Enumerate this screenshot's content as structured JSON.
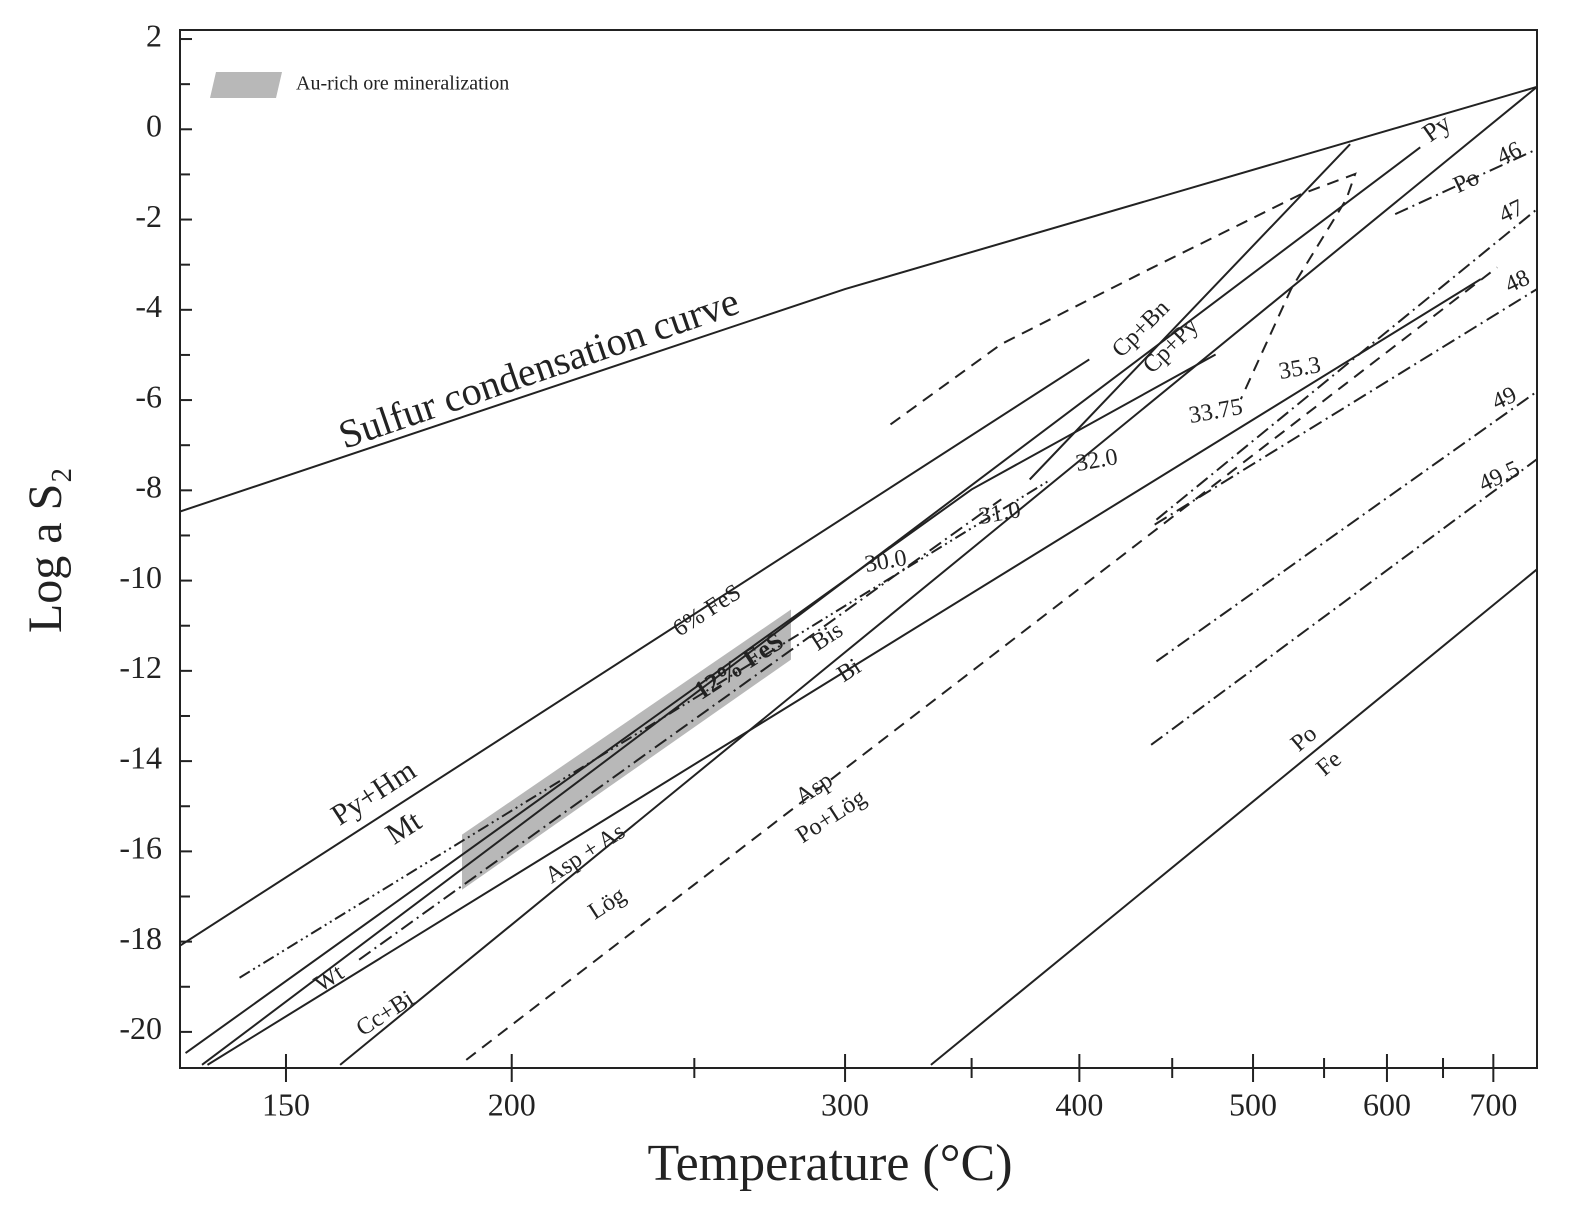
{
  "chart_data": {
    "type": "phase-diagram",
    "x_label": "Temperature (°C)",
    "y_label": "Log a S₂",
    "xscale": "reciprocal-kelvin",
    "xlim": [
      130,
      748
    ],
    "xticks": [
      150,
      200,
      300,
      400,
      500,
      600,
      700
    ],
    "xticks_minor": [
      250,
      350,
      450,
      550,
      650
    ],
    "ylim": [
      -20.8,
      2.2
    ],
    "yticks": [
      -20,
      -18,
      -16,
      -14,
      -12,
      -10,
      -8,
      -6,
      -4,
      -2,
      0,
      2
    ],
    "yticks_minor": [
      -19,
      -17,
      -15,
      -13,
      -11,
      -9,
      -7,
      -5,
      -3,
      -1,
      1
    ],
    "color": "#222222",
    "regions": [
      {
        "name": "Au-rich ore mineralization",
        "color": "#b8b8b8",
        "x": [
          188,
          281,
          281,
          188
        ],
        "y": [
          -15.63,
          -10.64,
          -11.75,
          -16.85
        ]
      }
    ],
    "lines": [
      {
        "style": "solid",
        "x": [
          130,
          300,
          748
        ],
        "y": [
          -8.47,
          -3.54,
          0.94
        ]
      },
      {
        "style": "solid",
        "x": [
          130,
          405
        ],
        "y": [
          -18.09,
          -5.1
        ]
      },
      {
        "style": "dash-dot-dot",
        "x": [
          141,
          386
        ],
        "y": [
          -18.8,
          -7.76
        ]
      },
      {
        "style": "dash-dot",
        "x": [
          165,
          363
        ],
        "y": [
          -18.4,
          -8.2
        ]
      },
      {
        "style": "solid",
        "x": [
          134,
          629
        ],
        "y": [
          -20.73,
          -0.4
        ]
      },
      {
        "style": "solid",
        "x": [
          131,
          350,
          476
        ],
        "y": [
          -20.47,
          -7.98,
          -4.99
        ]
      },
      {
        "style": "solid",
        "x": [
          376,
          570
        ],
        "y": [
          -7.76,
          -0.33
        ]
      },
      {
        "style": "solid",
        "x": [
          135,
          687
        ],
        "y": [
          -20.73,
          -3.32
        ]
      },
      {
        "style": "solid",
        "x": [
          161,
          748
        ],
        "y": [
          -20.73,
          0.94
        ]
      },
      {
        "style": "dashed",
        "x": [
          189,
          704
        ],
        "y": [
          -20.62,
          -3.06
        ]
      },
      {
        "style": "solid",
        "x": [
          333,
          748
        ],
        "y": [
          -20.73,
          -9.75
        ]
      },
      {
        "style": "dashed",
        "x": [
          317,
          363,
          437,
          533,
          574,
          567,
          526,
          492
        ],
        "y": [
          -6.54,
          -4.76,
          -3.1,
          -1.44,
          -0.99,
          -1.55,
          -3.54,
          -5.98
        ]
      },
      {
        "style": "dash-dot",
        "x": [
          607,
          748
        ],
        "y": [
          -1.88,
          -0.44
        ]
      },
      {
        "style": "dash-dot",
        "x": [
          441,
          748
        ],
        "y": [
          -8.65,
          -1.77
        ]
      },
      {
        "style": "dash-dot",
        "x": [
          440,
          748
        ],
        "y": [
          -8.76,
          -3.54
        ]
      },
      {
        "style": "dash-dot",
        "x": [
          441,
          748
        ],
        "y": [
          -11.79,
          -5.81
        ]
      },
      {
        "style": "dash-dot",
        "x": [
          438,
          748
        ],
        "y": [
          -13.64,
          -7.31
        ]
      }
    ],
    "annotations": [
      "Sulfur condensation curve",
      "Py+Hm",
      "Mt",
      "6% FeS",
      "12% FeS",
      "30.0",
      "31.0",
      "32.0",
      "33.75",
      "35.3",
      "Bis",
      "Bi",
      "Cp+Bn",
      "Cp+Py",
      "Py",
      "Po",
      "46",
      "47",
      "48",
      "49",
      "49.5",
      "Wt",
      "Cc+Bi",
      "Asp + As",
      "Lög",
      "Asp",
      "Po+Lög",
      "Po",
      "Fe"
    ]
  }
}
